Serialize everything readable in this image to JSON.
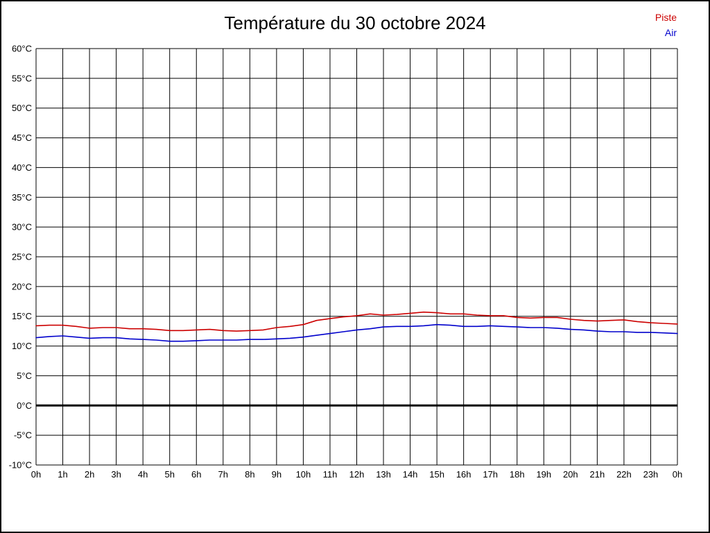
{
  "page": {
    "background": "#ffffff",
    "border_color": "#000000"
  },
  "chart_data": {
    "type": "line",
    "title": "Température du 30 octobre 2024",
    "xlabel": "",
    "ylabel": "",
    "xlim": [
      0,
      24
    ],
    "ylim": [
      -10,
      60
    ],
    "y_ticks": [
      60,
      55,
      50,
      45,
      40,
      35,
      30,
      25,
      20,
      15,
      10,
      5,
      0,
      -5,
      -10
    ],
    "y_tick_suffix": "°C",
    "x_tick_labels": [
      "0h",
      "1h",
      "2h",
      "3h",
      "4h",
      "5h",
      "6h",
      "7h",
      "8h",
      "9h",
      "10h",
      "11h",
      "12h",
      "13h",
      "14h",
      "15h",
      "16h",
      "17h",
      "18h",
      "19h",
      "20h",
      "21h",
      "22h",
      "23h",
      "0h"
    ],
    "grid": true,
    "grid_color": "#000000",
    "zero_line": {
      "value": 0,
      "width": 3,
      "color": "#000000"
    },
    "legend_position": "top-right",
    "series": [
      {
        "name": "Piste",
        "color": "#cc0000",
        "x": [
          0,
          0.5,
          1,
          1.5,
          2,
          2.5,
          3,
          3.5,
          4,
          4.5,
          5,
          5.5,
          6,
          6.5,
          7,
          7.5,
          8,
          8.5,
          9,
          9.5,
          10,
          10.5,
          11,
          11.5,
          12,
          12.5,
          13,
          13.5,
          14,
          14.5,
          15,
          15.5,
          16,
          16.5,
          17,
          17.5,
          18,
          18.5,
          19,
          19.5,
          20,
          20.5,
          21,
          21.5,
          22,
          22.5,
          23,
          23.5,
          24
        ],
        "values": [
          13.4,
          13.5,
          13.5,
          13.3,
          13.0,
          13.1,
          13.1,
          12.9,
          12.9,
          12.8,
          12.6,
          12.6,
          12.7,
          12.8,
          12.6,
          12.5,
          12.6,
          12.7,
          13.1,
          13.3,
          13.6,
          14.3,
          14.6,
          14.9,
          15.1,
          15.4,
          15.2,
          15.3,
          15.5,
          15.7,
          15.6,
          15.4,
          15.4,
          15.2,
          15.1,
          15.1,
          14.8,
          14.7,
          14.8,
          14.8,
          14.5,
          14.3,
          14.2,
          14.3,
          14.4,
          14.1,
          13.9,
          13.8,
          13.7
        ]
      },
      {
        "name": "Air",
        "color": "#0000cc",
        "x": [
          0,
          0.5,
          1,
          1.5,
          2,
          2.5,
          3,
          3.5,
          4,
          4.5,
          5,
          5.5,
          6,
          6.5,
          7,
          7.5,
          8,
          8.5,
          9,
          9.5,
          10,
          10.5,
          11,
          11.5,
          12,
          12.5,
          13,
          13.5,
          14,
          14.5,
          15,
          15.5,
          16,
          16.5,
          17,
          17.5,
          18,
          18.5,
          19,
          19.5,
          20,
          20.5,
          21,
          21.5,
          22,
          22.5,
          23,
          23.5,
          24
        ],
        "values": [
          11.4,
          11.6,
          11.7,
          11.5,
          11.3,
          11.4,
          11.4,
          11.2,
          11.1,
          11.0,
          10.8,
          10.8,
          10.9,
          11.0,
          11.0,
          11.0,
          11.1,
          11.1,
          11.2,
          11.3,
          11.5,
          11.8,
          12.1,
          12.4,
          12.7,
          12.9,
          13.2,
          13.3,
          13.3,
          13.4,
          13.6,
          13.5,
          13.3,
          13.3,
          13.4,
          13.3,
          13.2,
          13.1,
          13.1,
          13.0,
          12.8,
          12.7,
          12.5,
          12.4,
          12.4,
          12.3,
          12.3,
          12.2,
          12.1
        ]
      }
    ]
  }
}
